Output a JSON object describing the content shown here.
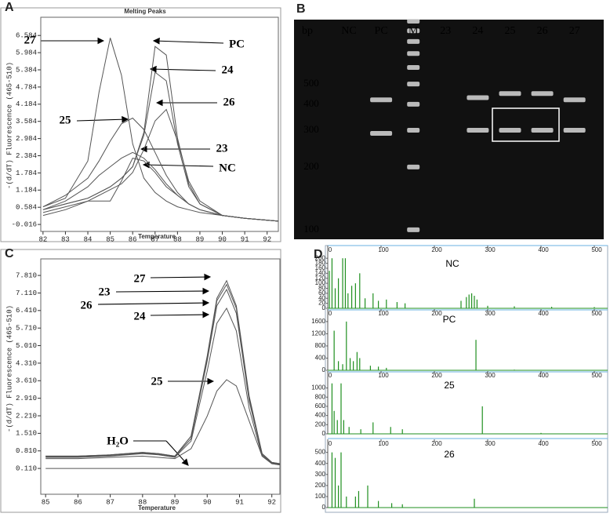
{
  "chart_data": [
    {
      "type": "line",
      "panel": "A",
      "title": "Melting Peaks",
      "xlabel": "Temperature",
      "ylabel": "-(d/dT) Fluorescence (465-510)",
      "xlim": [
        81.9,
        92.5
      ],
      "ylim": [
        -0.26,
        7.22
      ],
      "xticks": [
        82,
        83,
        84,
        85,
        86,
        87,
        88,
        89,
        90,
        91,
        92
      ],
      "yticks": [
        -0.016,
        0.584,
        1.184,
        1.784,
        2.384,
        2.984,
        3.584,
        4.184,
        4.784,
        5.384,
        5.984,
        6.584
      ],
      "x": [
        82,
        83,
        84,
        84.5,
        85,
        85.5,
        86,
        86.5,
        87,
        87.5,
        88,
        88.5,
        89,
        90,
        91,
        92.5
      ],
      "series": [
        {
          "name": "27",
          "color": "#555555",
          "values": [
            0.6,
            0.9,
            2.2,
            4.6,
            6.5,
            5.2,
            2.8,
            1.6,
            1.1,
            0.8,
            0.6,
            0.5,
            0.4,
            0.3,
            0.2,
            0.1
          ]
        },
        {
          "name": "PC",
          "color": "#555555",
          "values": [
            0.5,
            0.7,
            0.9,
            1.1,
            1.3,
            1.6,
            2.0,
            3.2,
            6.2,
            5.9,
            3.0,
            1.4,
            0.7,
            0.3,
            0.2,
            0.1
          ]
        },
        {
          "name": "24",
          "color": "#555555",
          "values": [
            0.5,
            0.7,
            0.9,
            1.1,
            1.3,
            1.6,
            2.0,
            3.1,
            5.3,
            5.0,
            2.8,
            1.3,
            0.7,
            0.3,
            0.2,
            0.1
          ]
        },
        {
          "name": "26",
          "color": "#555555",
          "values": [
            0.4,
            0.6,
            0.8,
            1.0,
            1.2,
            1.4,
            1.8,
            2.6,
            3.6,
            4.0,
            2.9,
            1.5,
            0.8,
            0.3,
            0.2,
            0.1
          ]
        },
        {
          "name": "25",
          "color": "#555555",
          "values": [
            0.6,
            1.0,
            1.6,
            2.2,
            2.9,
            3.5,
            3.7,
            3.3,
            2.5,
            1.7,
            1.1,
            0.7,
            0.5,
            0.3,
            0.2,
            0.1
          ]
        },
        {
          "name": "23",
          "color": "#555555",
          "values": [
            0.5,
            0.8,
            1.3,
            1.7,
            2.0,
            2.3,
            2.5,
            2.3,
            1.9,
            1.4,
            1.0,
            0.7,
            0.5,
            0.3,
            0.2,
            0.1
          ]
        },
        {
          "name": "NC",
          "color": "#555555",
          "values": [
            0.3,
            0.5,
            0.8,
            0.8,
            0.8,
            1.5,
            2.3,
            2.2,
            1.8,
            1.3,
            1.0,
            0.7,
            0.5,
            0.3,
            0.2,
            0.1
          ]
        }
      ]
    },
    {
      "type": "gel",
      "panel": "B",
      "ylabel": "bp",
      "log": true,
      "ylim": [
        90,
        1018
      ],
      "yticks": [
        500,
        400,
        300,
        200,
        100
      ],
      "categories": [
        "NC",
        "PC",
        "M",
        "23",
        "24",
        "25",
        "26",
        "27"
      ],
      "bands": [
        [],
        [
          420,
          290
        ],
        [
          1000,
          900,
          800,
          700,
          600,
          500,
          400,
          300,
          200,
          100
        ],
        [],
        [
          430,
          300
        ],
        [
          450,
          300
        ],
        [
          450,
          300
        ],
        [
          420,
          300
        ]
      ],
      "color": "#d8d8d8"
    },
    {
      "type": "line",
      "panel": "C",
      "xlabel": "Temperature",
      "ylabel": "-(d/dT) Fluorescence (465-510)",
      "xlim": [
        84.85,
        92.25
      ],
      "ylim": [
        -0.92,
        8.47
      ],
      "xticks": [
        85,
        86,
        87,
        88,
        89,
        90,
        91,
        92
      ],
      "yticks": [
        {
          "value": 0.11,
          "label": "0.110"
        },
        {
          "value": 0.81,
          "label": "0.810"
        },
        {
          "value": 1.51,
          "label": "1.510"
        },
        {
          "value": 2.21,
          "label": "2.210"
        },
        {
          "value": 2.91,
          "label": "2.910"
        },
        {
          "value": 3.61,
          "label": "3.610"
        },
        {
          "value": 4.31,
          "label": "4.310"
        },
        {
          "value": 5.01,
          "label": "5.010"
        },
        {
          "value": 5.71,
          "label": "5.710"
        },
        {
          "value": 6.41,
          "label": "6.410"
        },
        {
          "value": 7.11,
          "label": "7.110"
        },
        {
          "value": 7.81,
          "label": "7.810"
        }
      ],
      "x": [
        85,
        86,
        87,
        88,
        88.5,
        89,
        89.5,
        90,
        90.3,
        90.6,
        90.9,
        91.3,
        91.7,
        92,
        92.25
      ],
      "series": [
        {
          "name": "27",
          "color": "#555555",
          "values": [
            0.6,
            0.6,
            0.65,
            0.75,
            0.7,
            0.6,
            1.4,
            4.6,
            6.9,
            7.6,
            6.6,
            3.0,
            0.7,
            0.35,
            0.3
          ]
        },
        {
          "name": "23",
          "color": "#555555",
          "values": [
            0.6,
            0.6,
            0.65,
            0.75,
            0.7,
            0.6,
            1.4,
            4.5,
            6.8,
            7.45,
            6.5,
            2.9,
            0.7,
            0.35,
            0.3
          ]
        },
        {
          "name": "26",
          "color": "#555555",
          "values": [
            0.58,
            0.58,
            0.63,
            0.72,
            0.68,
            0.58,
            1.3,
            4.4,
            6.6,
            7.25,
            6.3,
            2.8,
            0.65,
            0.33,
            0.28
          ]
        },
        {
          "name": "24",
          "color": "#555555",
          "values": [
            0.55,
            0.55,
            0.6,
            0.7,
            0.65,
            0.55,
            1.2,
            4.0,
            5.9,
            6.5,
            5.6,
            2.5,
            0.6,
            0.3,
            0.25
          ]
        },
        {
          "name": "25",
          "color": "#555555",
          "values": [
            0.5,
            0.5,
            0.55,
            0.6,
            0.55,
            0.5,
            0.9,
            2.2,
            3.2,
            3.65,
            3.4,
            2.0,
            0.6,
            0.3,
            0.25
          ]
        },
        {
          "name": "H₂O",
          "color": "#555555",
          "values": [
            0.11,
            0.11,
            0.11,
            0.11,
            0.11,
            0.11,
            0.11,
            0.11,
            0.11,
            0.11,
            0.11,
            0.11,
            0.11,
            0.11,
            0.11
          ]
        }
      ]
    },
    {
      "type": "peaks",
      "panel": "D",
      "title": "NC",
      "color": "#1f8f1f",
      "xlim": [
        0,
        525
      ],
      "xticks": [
        0,
        100,
        200,
        300,
        400,
        500
      ],
      "ylim": [
        0,
        210
      ],
      "yticks": [
        0,
        20,
        40,
        60,
        80,
        100,
        120,
        140,
        160,
        180,
        200
      ],
      "x": [
        3,
        8,
        14,
        20,
        28,
        33,
        38,
        45,
        52,
        60,
        70,
        85,
        95,
        110,
        130,
        145,
        250,
        260,
        265,
        270,
        275,
        280,
        300,
        350,
        420,
        500
      ],
      "values": [
        150,
        200,
        80,
        120,
        200,
        200,
        60,
        90,
        100,
        140,
        40,
        60,
        30,
        35,
        25,
        20,
        30,
        45,
        55,
        60,
        50,
        35,
        10,
        8,
        6,
        5
      ]
    },
    {
      "type": "peaks",
      "title": "PC",
      "color": "#1f8f1f",
      "xlim": [
        0,
        525
      ],
      "xticks": [
        0,
        100,
        200,
        300,
        400,
        500
      ],
      "ylim": [
        0,
        1700
      ],
      "yticks": [
        0,
        400,
        800,
        1200,
        1600
      ],
      "x": [
        12,
        20,
        28,
        35,
        42,
        48,
        55,
        60,
        80,
        95,
        110,
        278,
        350,
        500
      ],
      "values": [
        1300,
        300,
        200,
        1600,
        400,
        300,
        600,
        400,
        150,
        120,
        80,
        1000,
        20,
        10
      ]
    },
    {
      "type": "peaks",
      "title": "25",
      "color": "#1f8f1f",
      "xlim": [
        0,
        525
      ],
      "xticks": [
        0,
        100,
        200,
        300,
        400,
        500
      ],
      "ylim": [
        0,
        1180
      ],
      "yticks": [
        0,
        200,
        400,
        600,
        800,
        1000
      ],
      "x": [
        8,
        12,
        18,
        25,
        30,
        40,
        62,
        85,
        118,
        140,
        290,
        400
      ],
      "values": [
        1100,
        500,
        300,
        1100,
        300,
        150,
        100,
        250,
        150,
        100,
        600,
        20
      ]
    },
    {
      "type": "peaks",
      "title": "26",
      "color": "#1f8f1f",
      "xlim": [
        0,
        525
      ],
      "xticks": [
        0,
        100,
        200,
        300,
        400,
        500
      ],
      "ylim": [
        0,
        540
      ],
      "yticks": [
        0,
        100,
        200,
        300,
        400,
        500
      ],
      "x": [
        8,
        14,
        20,
        25,
        35,
        52,
        58,
        75,
        95,
        120,
        140,
        275
      ],
      "values": [
        500,
        450,
        200,
        500,
        100,
        100,
        150,
        200,
        60,
        40,
        30,
        80
      ]
    }
  ]
}
